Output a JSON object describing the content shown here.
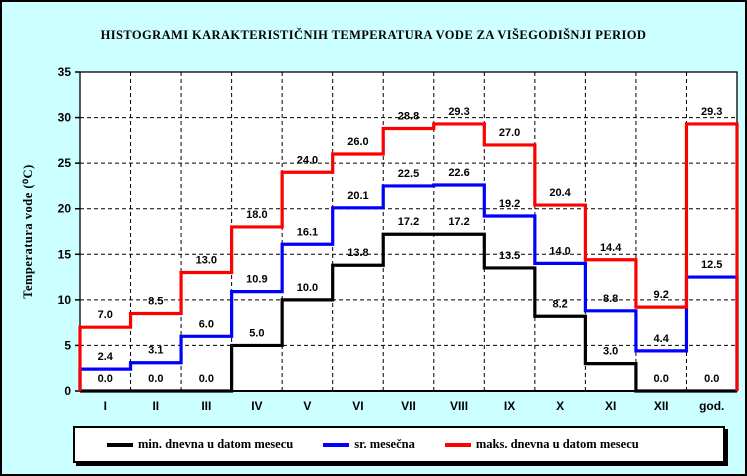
{
  "window": {
    "background_color": "#CCFFFF",
    "border_color": "#000000",
    "plot_background_color": "#FFFFFF"
  },
  "chart_data": {
    "type": "line",
    "subtype": "step-histogram-outline",
    "title": "HISTOGRAMI KARAKTERISTIČNIH TEMPERATURA VODE ZA VIŠEGODIŠNJI PERIOD",
    "xlabel": "",
    "ylabel": "Temperatura vode (⁰C)",
    "categories": [
      "I",
      "II",
      "III",
      "IV",
      "V",
      "VI",
      "VII",
      "VIII",
      "IX",
      "X",
      "XI",
      "XII",
      "god."
    ],
    "series": [
      {
        "name": "min. dnevna u datom mesecu",
        "color": "#000000",
        "values": [
          0.0,
          0.0,
          0.0,
          5.0,
          10.0,
          13.8,
          17.2,
          17.2,
          13.5,
          8.2,
          3.0,
          0.0,
          0.0
        ]
      },
      {
        "name": "sr. mesečna",
        "color": "#0000FF",
        "values": [
          2.4,
          3.1,
          6.0,
          10.9,
          16.1,
          20.1,
          22.5,
          22.6,
          19.2,
          14.0,
          8.8,
          4.4,
          12.5
        ]
      },
      {
        "name": "maks. dnevna u datom mesecu",
        "color": "#FF0000",
        "values": [
          7.0,
          8.5,
          13.0,
          18.0,
          24.0,
          26.0,
          28.8,
          29.3,
          27.0,
          20.4,
          14.4,
          9.2,
          29.3
        ]
      }
    ],
    "ylim": [
      0,
      35
    ],
    "ytick_step": 5,
    "ytick_labels": [
      "0",
      "5",
      "10",
      "15",
      "20",
      "25",
      "30",
      "35"
    ],
    "grid": true,
    "grid_style": "dashed",
    "data_labels": true,
    "data_label_decimals": 1,
    "legend_position": "bottom"
  }
}
